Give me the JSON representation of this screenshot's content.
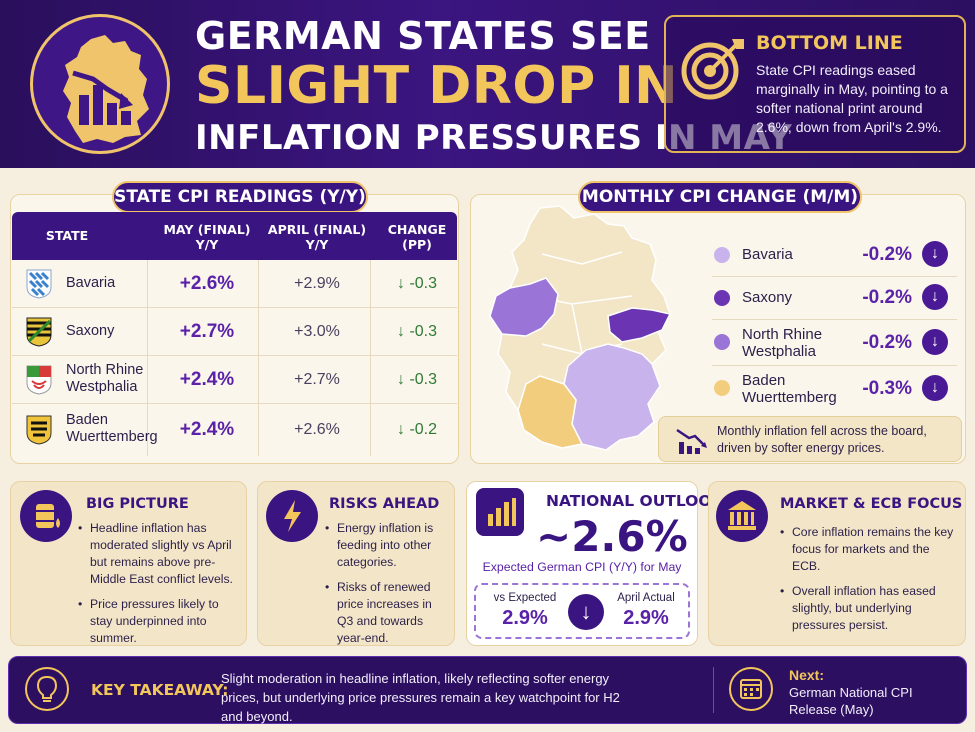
{
  "header": {
    "title_line1": "GERMAN STATES SEE",
    "title_line2": "SLIGHT DROP IN",
    "title_line3": "INFLATION PRESSURES IN MAY",
    "bottom_line": {
      "title": "BOTTOM LINE",
      "text": "State CPI readings eased marginally in May, pointing to a softer national print around 2.6%, down from April's 2.9%."
    }
  },
  "state_table": {
    "title": "STATE CPI READINGS (Y/Y)",
    "headers": [
      "STATE",
      "MAY (FINAL) Y/Y",
      "APRIL (FINAL) Y/Y",
      "CHANGE (PP)"
    ],
    "header_lines": {
      "state": "STATE",
      "may1": "MAY (FINAL)",
      "may2": "Y/Y",
      "apr1": "APRIL (FINAL)",
      "apr2": "Y/Y",
      "chg1": "CHANGE",
      "chg2": "(PP)"
    },
    "rows": [
      {
        "name1": "Bavaria",
        "name2": "",
        "may": "+2.6%",
        "april": "+2.9%",
        "change": "-0.3"
      },
      {
        "name1": "Saxony",
        "name2": "",
        "may": "+2.7%",
        "april": "+3.0%",
        "change": "-0.3"
      },
      {
        "name1": "North Rhine",
        "name2": "Westphalia",
        "may": "+2.4%",
        "april": "+2.7%",
        "change": "-0.3"
      },
      {
        "name1": "Baden",
        "name2": "Wuerttemberg",
        "may": "+2.4%",
        "april": "+2.6%",
        "change": "-0.2"
      }
    ]
  },
  "monthly": {
    "title": "MONTHLY CPI CHANGE (M/M)",
    "items": [
      {
        "name1": "Bavaria",
        "name2": "",
        "value": "-0.2%",
        "color": "#c9b3ec"
      },
      {
        "name1": "Saxony",
        "name2": "",
        "value": "-0.2%",
        "color": "#6b34b3"
      },
      {
        "name1": "North Rhine",
        "name2": "Westphalia",
        "value": "-0.2%",
        "color": "#9a74d6"
      },
      {
        "name1": "Baden",
        "name2": "Wuerttemberg",
        "value": "-0.3%",
        "color": "#f2cd7e"
      }
    ],
    "note": "Monthly inflation fell across the board, driven by softer energy prices."
  },
  "cards": {
    "big_picture": {
      "title": "BIG PICTURE",
      "bullets": [
        "Headline inflation has moderated slightly vs April but remains above pre-Middle East conflict levels.",
        "Price pressures likely to stay underpinned into summer."
      ]
    },
    "risks": {
      "title": "RISKS AHEAD",
      "bullets": [
        "Energy inflation is feeding into other categories.",
        "Risks of renewed price increases in Q3 and towards year-end."
      ]
    },
    "outlook": {
      "title": "NATIONAL OUTLOOK",
      "value": "~2.6%",
      "caption": "Expected German CPI (Y/Y) for May",
      "vs_expected_label": "vs Expected",
      "vs_expected_value": "2.9%",
      "april_label": "April Actual",
      "april_value": "2.9%"
    },
    "market": {
      "title": "MARKET & ECB FOCUS",
      "bullets": [
        "Core inflation remains the key focus for markets and the ECB.",
        "Overall inflation has eased slightly, but underlying pressures persist."
      ]
    }
  },
  "takeaway": {
    "label": "KEY TAKEAWAY:",
    "text": "Slight moderation in headline inflation, likely reflecting softer energy prices, but underlying price pressures remain a key watchpoint for H2 and beyond.",
    "next_label": "Next:",
    "next_text": "German National CPI Release (May)"
  },
  "colors": {
    "purple_dark": "#2c0f60",
    "purple": "#3a1480",
    "gold": "#f3c65c",
    "green_change": "#2f7a35"
  }
}
